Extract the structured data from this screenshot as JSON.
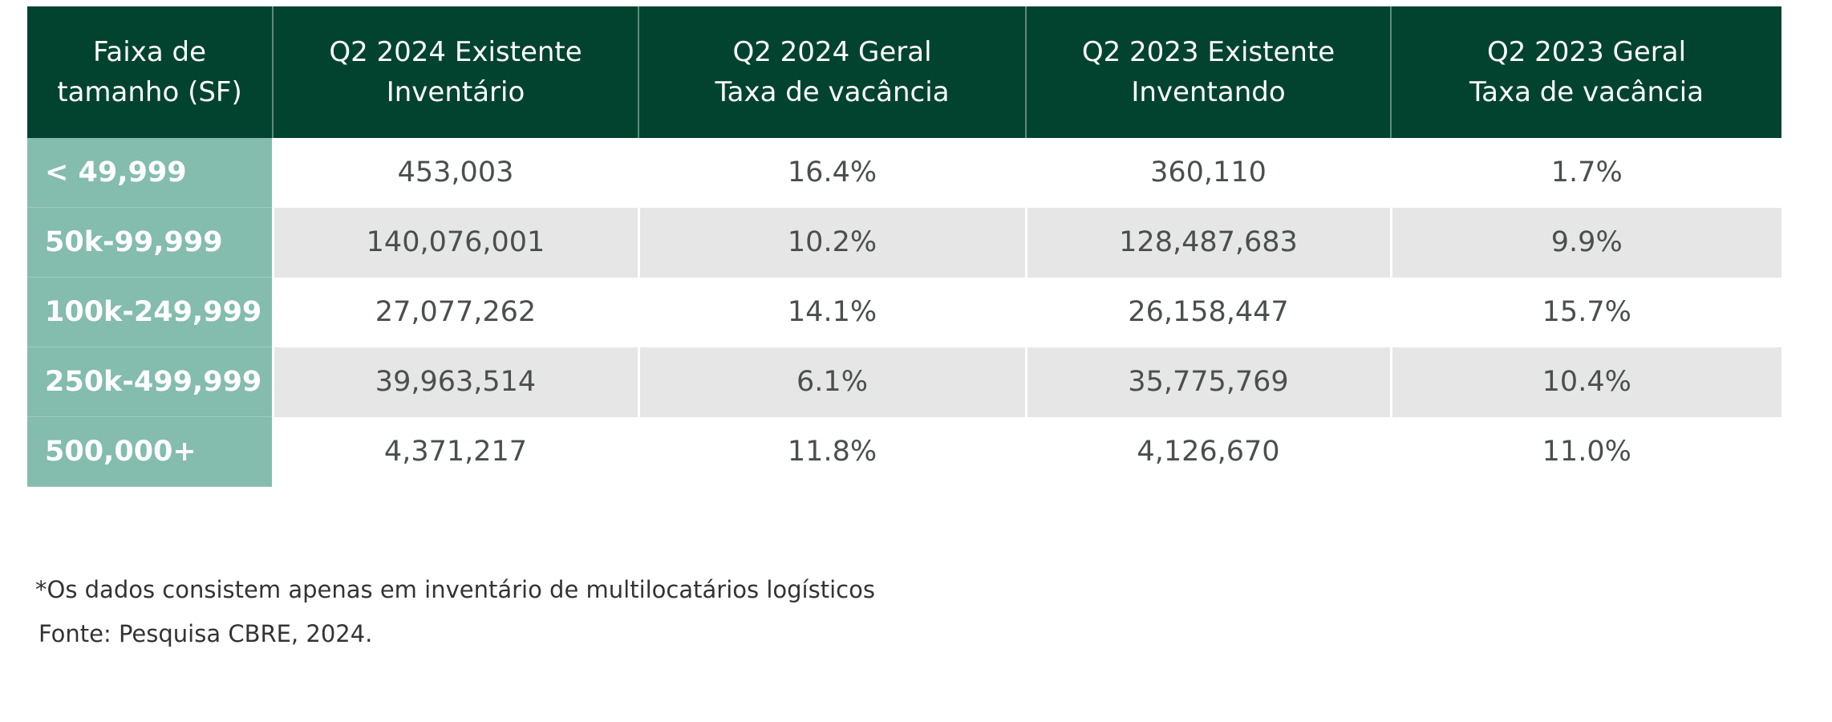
{
  "table": {
    "header": [
      "Faixa de\ntamanho (SF)",
      "Q2 2024 Existente\nInventário",
      "Q2 2024 Geral\nTaxa de vacância",
      "Q2 2023 Existente\nInventando",
      "Q2 2023 Geral\nTaxa de vacância"
    ],
    "rows": [
      [
        "< 49,999",
        "453,003",
        "16.4%",
        "360,110",
        "1.7%"
      ],
      [
        "50k-99,999",
        "140,076,001",
        "10.2%",
        "128,487,683",
        "9.9%"
      ],
      [
        "100k-249,999",
        "27,077,262",
        "14.1%",
        "26,158,447",
        "15.7%"
      ],
      [
        "250k-499,999",
        "39,963,514",
        "6.1%",
        "35,775,769",
        "10.4%"
      ],
      [
        "500,000+",
        "4,371,217",
        "11.8%",
        "4,126,670",
        "11.0%"
      ]
    ]
  },
  "notes": [
    "*Os dados consistem apenas em inventário de multilocatários logísticos",
    "Fonte: Pesquisa CBRE, 2024."
  ]
}
